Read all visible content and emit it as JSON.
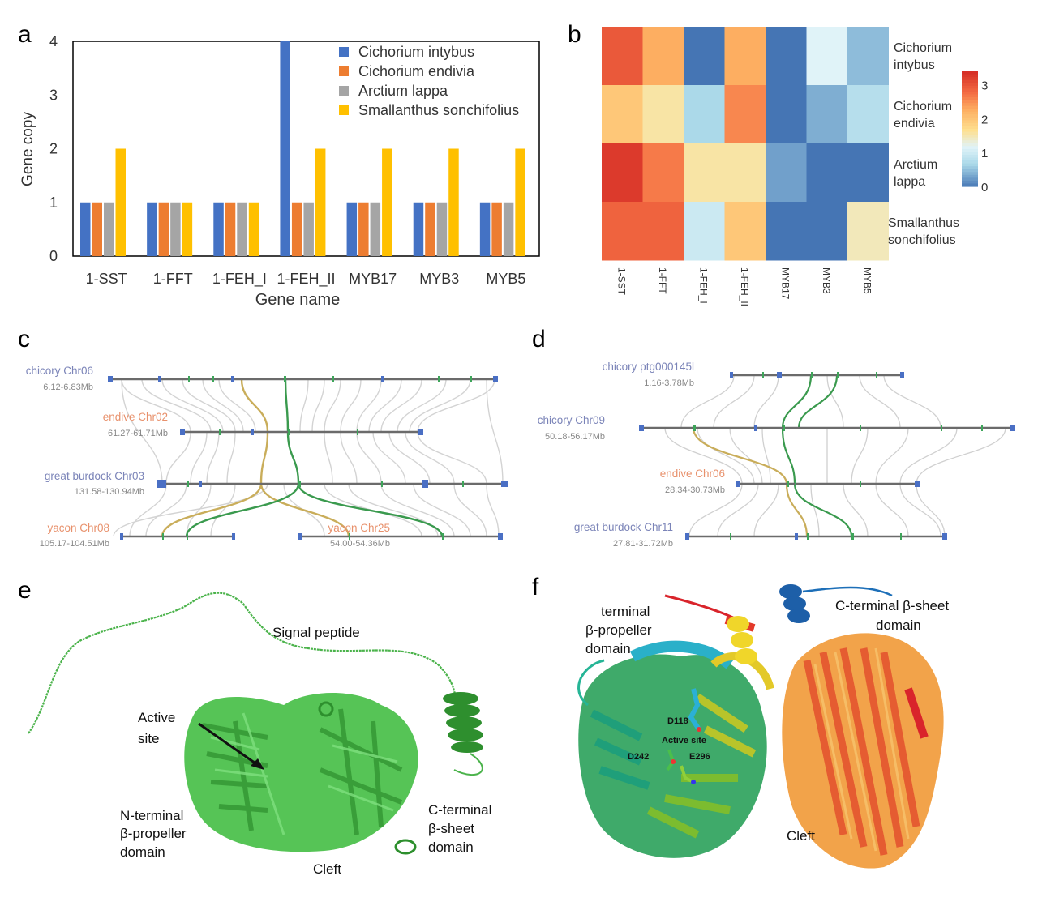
{
  "panels": {
    "a": "a",
    "b": "b",
    "c": "c",
    "d": "d",
    "e": "e",
    "f": "f"
  },
  "chart_data": [
    {
      "type": "bar",
      "title": "",
      "xlabel": "Gene name",
      "ylabel": "Gene copy",
      "ylim": [
        0,
        4
      ],
      "yticks": [
        "0",
        "1",
        "2",
        "3",
        "4"
      ],
      "categories": [
        "1-SST",
        "1-FFT",
        "1-FEH_I",
        "1-FEH_II",
        "MYB17",
        "MYB3",
        "MYB5"
      ],
      "series": [
        {
          "name": "Cichorium intybus",
          "color": "#4472C4",
          "values": [
            1,
            1,
            1,
            4,
            1,
            1,
            1
          ]
        },
        {
          "name": "Cichorium endivia",
          "color": "#ED7D31",
          "values": [
            1,
            1,
            1,
            1,
            1,
            1,
            1
          ]
        },
        {
          "name": "Arctium lappa",
          "color": "#A5A5A5",
          "values": [
            1,
            1,
            1,
            1,
            1,
            1,
            1
          ]
        },
        {
          "name": "Smallanthus sonchifolius",
          "color": "#FFC000",
          "values": [
            2,
            1,
            1,
            2,
            2,
            2,
            2
          ]
        }
      ],
      "legend": "top-right"
    },
    {
      "type": "heatmap",
      "columns": [
        "1-SST",
        "1-FFT",
        "1-FEH_I",
        "1-FEH_II",
        "MYB17",
        "MYB3",
        "MYB5"
      ],
      "rows": [
        {
          "label1": "Cichorium",
          "label2": "intybus"
        },
        {
          "label1": "Cichorium",
          "label2": "endivia"
        },
        {
          "label1": "Arctium",
          "label2": "lappa"
        },
        {
          "label1": "Smallanthus",
          "label2": "sonchifolius"
        }
      ],
      "values": [
        [
          3.0,
          2.3,
          0.0,
          2.3,
          0.0,
          1.2,
          0.5
        ],
        [
          2.0,
          1.6,
          0.7,
          2.6,
          0.0,
          0.4,
          0.8
        ],
        [
          3.3,
          2.7,
          1.6,
          1.6,
          0.3,
          0.0,
          0.0
        ],
        [
          2.9,
          2.9,
          1.0,
          2.0,
          0.0,
          0.0,
          1.5
        ]
      ],
      "colorbar": {
        "ticks": [
          "0",
          "1",
          "2",
          "3"
        ],
        "range": [
          0,
          3.4
        ]
      }
    }
  ],
  "synteny_c": {
    "tracks": [
      {
        "name": "chicory Chr06",
        "range": "6.12-6.83Mb",
        "color": "#7b84b8"
      },
      {
        "name": "endive Chr02",
        "range": "61.27-61.71Mb",
        "color": "#e8916c"
      },
      {
        "name": "great burdock Chr03",
        "range": "131.58-130.94Mb",
        "color": "#7b84b8"
      },
      {
        "name": "yacon Chr08",
        "range": "105.17-104.51Mb",
        "color": "#e8916c"
      },
      {
        "name": "yacon Chr25",
        "range": "54.00-54.36Mb",
        "color": "#e8916c"
      }
    ]
  },
  "synteny_d": {
    "tracks": [
      {
        "name": "chicory ptg000145l",
        "range": "1.16-3.78Mb",
        "color": "#7b84b8"
      },
      {
        "name": "chicory Chr09",
        "range": "50.18-56.17Mb",
        "color": "#7b84b8"
      },
      {
        "name": "endive Chr06",
        "range": "28.34-30.73Mb",
        "color": "#e8916c"
      },
      {
        "name": "great burdock Chr11",
        "range": "27.81-31.72Mb",
        "color": "#7b84b8"
      }
    ]
  },
  "structure_e": {
    "signal_peptide": "Signal peptide",
    "active_site_1": "Active",
    "active_site_2": "site",
    "n_term_1": "N-terminal",
    "n_term_2": "β-propeller",
    "n_term_3": "domain",
    "c_term_1": "C-terminal",
    "c_term_2": "β-sheet",
    "c_term_3": "domain",
    "cleft": "Cleft"
  },
  "structure_f": {
    "term_1": "terminal",
    "term_2": "β-propeller",
    "term_3": "domain",
    "c_term_1": "C-terminal β-sheet",
    "c_term_2": "domain",
    "d118": "D118",
    "active": "Active site",
    "d242": "D242",
    "e296": "E296",
    "cleft": "Cleft"
  }
}
